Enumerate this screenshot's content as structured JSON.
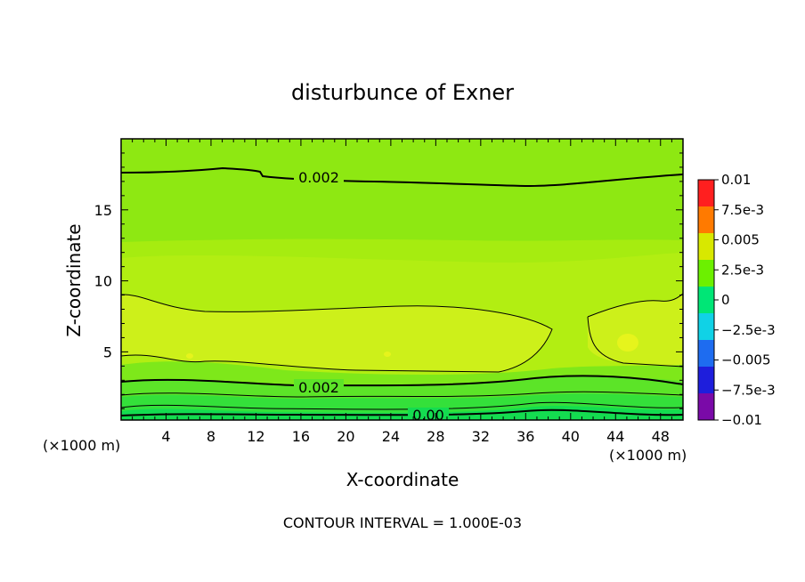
{
  "chart_data": {
    "type": "contour",
    "title": "disturbunce of Exner",
    "xlabel": "X-coordinate",
    "ylabel": "Z-coordinate",
    "x_unit_left": "(×1000 m)",
    "x_unit_right": "(×1000 m)",
    "xlim": [
      0,
      50
    ],
    "ylim": [
      0.2,
      20
    ],
    "x_ticks": [
      4,
      8,
      12,
      16,
      20,
      24,
      28,
      32,
      36,
      40,
      44,
      48
    ],
    "x_tick_labels": [
      "4",
      "8",
      "12",
      "16",
      "20",
      "24",
      "28",
      "32",
      "36",
      "40",
      "44",
      "48"
    ],
    "y_ticks": [
      5,
      10,
      15
    ],
    "y_tick_labels": [
      "5",
      "10",
      "15"
    ],
    "colorbar": {
      "levels": [
        -0.01,
        -0.0075,
        -0.005,
        -0.0025,
        0,
        0.0025,
        0.005,
        0.0075,
        0.01
      ],
      "labels": [
        "0.01",
        "7.5e-3",
        "0.005",
        "2.5e-3",
        "0",
        "−2.5e-3",
        "−0.005",
        "−7.5e-3",
        "−0.01"
      ],
      "colors": [
        "#7a0aa8",
        "#1e1edc",
        "#1e6cf0",
        "#10d2e6",
        "#00e676",
        "#6cf000",
        "#d8e800",
        "#ff7a00",
        "#ff1f1f"
      ]
    },
    "contour_labels": [
      {
        "text": "0.002",
        "x": 17.5,
        "z": 17.2
      },
      {
        "text": "0.002",
        "x": 17.5,
        "z": 2.5
      },
      {
        "text": "0.00",
        "x": 24.5,
        "z": 0.5
      }
    ],
    "footer": "CONTOUR INTERVAL = 1.000E-03"
  }
}
